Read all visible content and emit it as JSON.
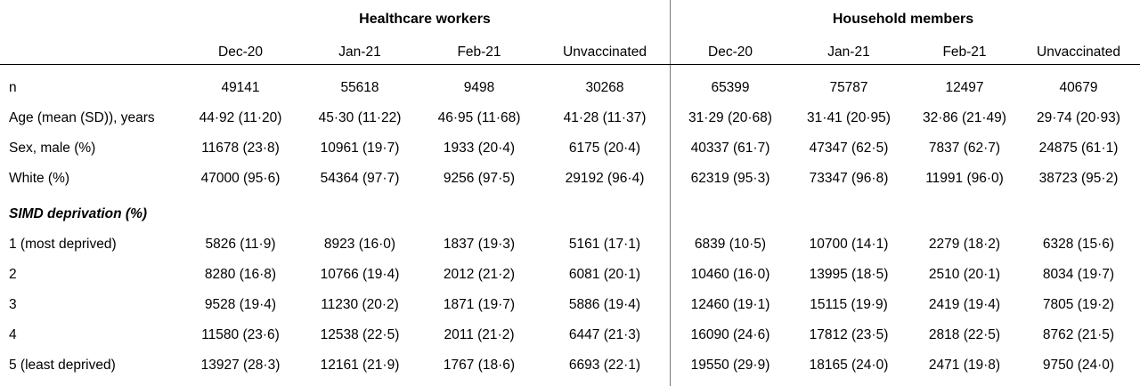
{
  "groups": [
    "Healthcare workers",
    "Household members"
  ],
  "columns": [
    "Dec-20",
    "Jan-21",
    "Feb-21",
    "Unvaccinated",
    "Dec-20",
    "Jan-21",
    "Feb-21",
    "Unvaccinated"
  ],
  "rows": [
    {
      "label": "n",
      "cells": [
        "49141",
        "55618",
        "9498",
        "30268",
        "65399",
        "75787",
        "12497",
        "40679"
      ]
    },
    {
      "label": "Age (mean (SD)), years",
      "cells": [
        "44·92 (11·20)",
        "45·30 (11·22)",
        "46·95 (11·68)",
        "41·28 (11·37)",
        "31·29 (20·68)",
        "31·41 (20·95)",
        "32·86 (21·49)",
        "29·74 (20·93)"
      ]
    },
    {
      "label": "Sex, male  (%)",
      "cells": [
        "11678 (23·8)",
        "10961 (19·7)",
        "1933 (20·4)",
        "6175 (20·4)",
        "40337 (61·7)",
        "47347 (62·5)",
        "7837 (62·7)",
        "24875 (61·1)"
      ]
    },
    {
      "label": "White (%)",
      "cells": [
        "47000 (95·6)",
        "54364 (97·7)",
        "9256 (97·5)",
        "29192 (96·4)",
        "62319 (95·3)",
        "73347 (96·8)",
        "11991 (96·0)",
        "38723 (95·2)"
      ]
    },
    {
      "label": "SIMD deprivation (%)",
      "section": true,
      "cells": []
    },
    {
      "label": "1 (most deprived)",
      "cells": [
        "5826 (11·9)",
        "8923 (16·0)",
        "1837 (19·3)",
        "5161 (17·1)",
        "6839 (10·5)",
        "10700 (14·1)",
        "2279 (18·2)",
        "6328 (15·6)"
      ]
    },
    {
      "label": "2",
      "cells": [
        "8280 (16·8)",
        "10766 (19·4)",
        "2012 (21·2)",
        "6081 (20·1)",
        "10460 (16·0)",
        "13995 (18·5)",
        "2510 (20·1)",
        "8034 (19·7)"
      ]
    },
    {
      "label": "3",
      "cells": [
        "9528 (19·4)",
        "11230 (20·2)",
        "1871 (19·7)",
        "5886 (19·4)",
        "12460 (19·1)",
        "15115 (19·9)",
        "2419 (19·4)",
        "7805 (19·2)"
      ]
    },
    {
      "label": "4",
      "cells": [
        "11580 (23·6)",
        "12538 (22·5)",
        "2011 (21·2)",
        "6447 (21·3)",
        "16090 (24·6)",
        "17812 (23·5)",
        "2818 (22·5)",
        "8762 (21·5)"
      ]
    },
    {
      "label": "5 (least deprived)",
      "cells": [
        "13927 (28·3)",
        "12161 (21·9)",
        "1767 (18·6)",
        "6693 (22·1)",
        "19550 (29·9)",
        "18165 (24·0)",
        "2471 (19·8)",
        "9750 (24·0)"
      ]
    }
  ]
}
